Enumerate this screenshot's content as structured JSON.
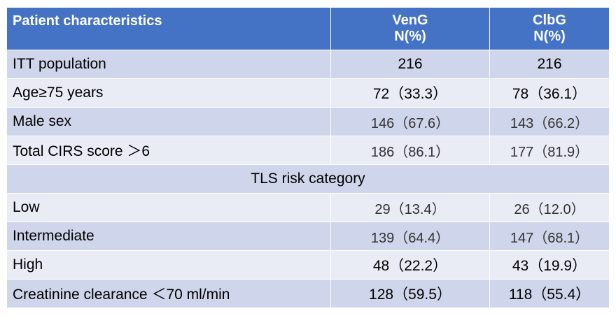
{
  "header": {
    "characteristic": "Patient characteristics",
    "col1_name": "VenG",
    "col1_unit": "N(%)",
    "col2_name": "ClbG",
    "col2_unit": "N(%)"
  },
  "rows": [
    {
      "label": "ITT population",
      "veng": "216",
      "clbg": "216"
    },
    {
      "label": "Age≥75 years",
      "veng": "72（33.3）",
      "clbg": "78（36.1）"
    },
    {
      "label": "Male sex",
      "veng": "146（67.6）",
      "clbg": "143（66.2）"
    },
    {
      "label": "Total CIRS score ＞6",
      "veng": "186（86.1）",
      "clbg": "177（81.9）"
    }
  ],
  "section": "TLS risk category",
  "tls_rows": [
    {
      "label": "Low",
      "veng": "29（13.4）",
      "clbg": "26（12.0）"
    },
    {
      "label": "Intermediate",
      "veng": "139（64.4）",
      "clbg": "147（68.1）"
    },
    {
      "label": "High",
      "veng": "48（22.2）",
      "clbg": "43（19.9）"
    },
    {
      "label": "Creatinine clearance ＜70 ml/min",
      "veng": "128（59.5）",
      "clbg": "118（55.4）"
    }
  ],
  "colors": {
    "header_bg": "#4472c4",
    "row_dark": "#cfd5ea",
    "row_light": "#e9ebf5"
  }
}
